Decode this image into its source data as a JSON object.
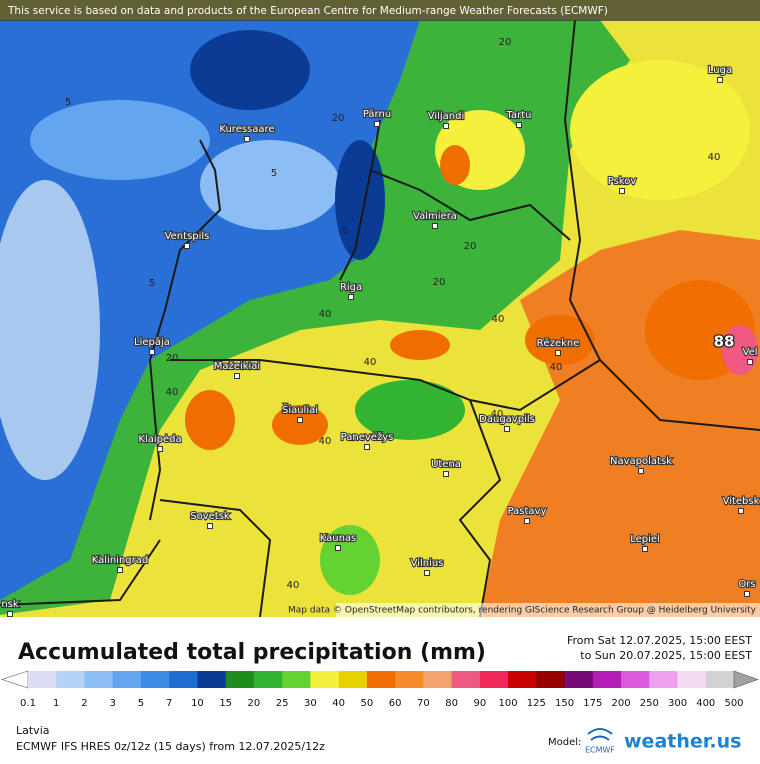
{
  "attribution": "This service is based on data and products of the European Centre for Medium-range Weather Forecasts (ECMWF)",
  "map": {
    "cities": [
      "Luga",
      "Pärnu",
      "Viljandi",
      "Tartu",
      "Kuressaare",
      "Pskov",
      "Valmiera",
      "Ventspils",
      "Riga",
      "Liepāja",
      "Rēzekne",
      "Mažeikiai",
      "Šiauliai",
      "Panevėžys",
      "Daugavpils",
      "Klaipėda",
      "Navapolatsk",
      "Utena",
      "Vitebsk",
      "Sovetsk",
      "Pastavy",
      "Kaunas",
      "Lepiel",
      "Vilnius",
      "Kaliningrad",
      "Ors",
      "Vel",
      "nsk"
    ],
    "contour_labels": [
      20,
      5,
      20,
      40,
      5,
      5,
      20,
      5,
      20,
      40,
      40,
      20,
      40,
      40,
      40,
      40,
      40,
      40
    ],
    "max_label": 88,
    "credit": "Map data © OpenStreetMap contributors, rendering GIScience Research Group @ Heidelberg University"
  },
  "legend": {
    "title": "Accumulated total precipitation (mm)",
    "period_from": "From Sat 12.07.2025, 15:00 EEST",
    "period_to": "to Sun 20.07.2025, 15:00 EEST",
    "ticks": [
      0.1,
      1,
      2,
      3,
      5,
      7,
      10,
      15,
      20,
      25,
      30,
      40,
      50,
      60,
      70,
      80,
      90,
      100,
      125,
      150,
      175,
      200,
      250,
      300,
      400,
      500
    ],
    "colors": [
      "#dcdcf5",
      "#b4d2f5",
      "#8cbef5",
      "#64a5f0",
      "#3c8ce6",
      "#1e6ed2",
      "#0a3c96",
      "#1e8c1e",
      "#32b432",
      "#64d232",
      "#f5f03c",
      "#e6d200",
      "#f06e00",
      "#f58c28",
      "#f5a46e",
      "#f05a82",
      "#f0285a",
      "#c80000",
      "#960000",
      "#780a78",
      "#b41eb4",
      "#dc5adc",
      "#f0a0f0",
      "#f5dcf5",
      "#d2d2d2"
    ],
    "below_color": "#ffffff",
    "above_color": "#a0a0a0"
  },
  "footer": {
    "region": "Latvia",
    "model_run": "ECMWF IFS HRES 0z/12z (15 days) from 12.07.2025/12z",
    "model_label": "Model:",
    "model_logo": "ECMWF",
    "brand": "weather.us"
  }
}
